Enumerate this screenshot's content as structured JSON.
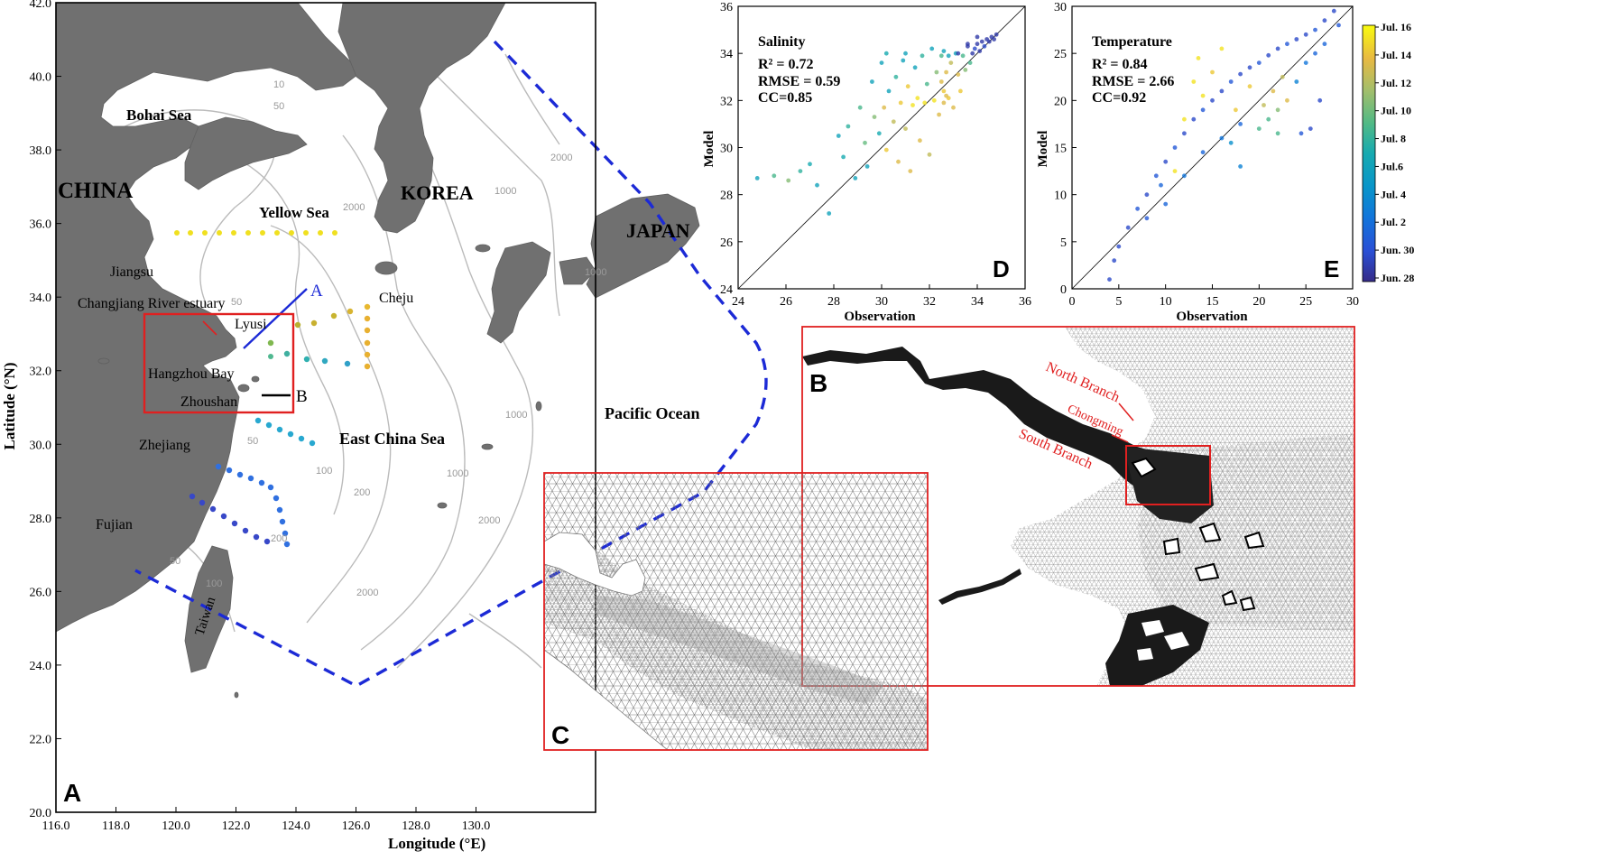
{
  "panel_a": {
    "letter": "A",
    "xlabel": "Longitude (°E)",
    "ylabel": "Latitude (°N)",
    "x_ticks": [
      "116.0",
      "118.0",
      "120.0",
      "122.0",
      "124.0",
      "126.0",
      "128.0",
      "130.0"
    ],
    "y_ticks": [
      "20.0",
      "22.0",
      "24.0",
      "26.0",
      "28.0",
      "30.0",
      "32.0",
      "34.0",
      "36.0",
      "38.0",
      "40.0",
      "42.0"
    ],
    "labels": {
      "china": "CHINA",
      "korea": "KOREA",
      "japan": "JAPAN",
      "bohai": "Bohai Sea",
      "yellow": "Yellow Sea",
      "east_china": "East China Sea",
      "pacific": "Pacific Ocean",
      "jiangsu": "Jiangsu",
      "estuary": "Changjiang River estuary",
      "lyusi": "Lyusi",
      "hangzhou": "Hangzhou Bay",
      "zhoushan": "Zhoushan",
      "zhejiang": "Zhejiang",
      "fujian": "Fujian",
      "taiwan": "Taiwan",
      "cheju": "Cheju",
      "section_a": "A",
      "section_b": "B"
    },
    "contour_labels": [
      "10",
      "50",
      "100",
      "200",
      "1000",
      "2000"
    ],
    "colors": {
      "land": "#707070",
      "boundary": "#1c2ad6",
      "box": "#e02020",
      "contour": "#bbbbbb"
    }
  },
  "panel_b": {
    "letter": "B",
    "labels": {
      "north": "North Branch",
      "chongming": "Chongming",
      "south": "South Branch"
    }
  },
  "panel_c": {
    "letter": "C"
  },
  "panel_d": {
    "letter": "D",
    "title": "Salinity",
    "r2": "R² = 0.72",
    "rmse": "RMSE = 0.59",
    "cc": "CC=0.85",
    "xlabel": "Observation",
    "ylabel": "Model"
  },
  "panel_e": {
    "letter": "E",
    "title": "Temperature",
    "r2": "R² = 0.84",
    "rmse": "RMSE = 2.66",
    "cc": "CC=0.92",
    "xlabel": "Observation",
    "ylabel": "Model"
  },
  "colorbar": {
    "labels": [
      "Jul. 16",
      "Jul. 14",
      "Jul. 12",
      "Jul. 10",
      "Jul. 8",
      "Jul.6",
      "Jul. 4",
      "Jul. 2",
      "Jun. 30",
      "Jun. 28"
    ]
  },
  "chart_data": [
    {
      "type": "scatter",
      "title": "Salinity",
      "xlabel": "Observation",
      "ylabel": "Model",
      "xlim": [
        24,
        36
      ],
      "ylim": [
        24,
        36
      ],
      "x_ticks": [
        24,
        26,
        28,
        30,
        32,
        34,
        36
      ],
      "y_ticks": [
        24,
        26,
        28,
        30,
        32,
        34,
        36
      ],
      "reference_line": "y = x",
      "stats": {
        "R2": 0.72,
        "RMSE": 0.59,
        "CC": 0.85
      },
      "points": [
        [
          24.8,
          28.7,
          0.45
        ],
        [
          25.5,
          28.8,
          0.6
        ],
        [
          26.1,
          28.6,
          0.7
        ],
        [
          26.6,
          29.0,
          0.55
        ],
        [
          27.0,
          29.3,
          0.5
        ],
        [
          27.3,
          28.4,
          0.45
        ],
        [
          27.8,
          27.2,
          0.45
        ],
        [
          28.2,
          30.5,
          0.45
        ],
        [
          28.4,
          29.6,
          0.5
        ],
        [
          28.6,
          30.9,
          0.55
        ],
        [
          28.9,
          28.7,
          0.45
        ],
        [
          29.1,
          31.7,
          0.6
        ],
        [
          29.3,
          30.2,
          0.65
        ],
        [
          29.4,
          29.2,
          0.45
        ],
        [
          29.6,
          32.8,
          0.45
        ],
        [
          29.7,
          31.3,
          0.7
        ],
        [
          29.9,
          30.6,
          0.5
        ],
        [
          30.0,
          33.6,
          0.45
        ],
        [
          30.1,
          31.7,
          0.85
        ],
        [
          30.2,
          29.9,
          0.9
        ],
        [
          30.3,
          32.4,
          0.45
        ],
        [
          30.5,
          31.1,
          0.8
        ],
        [
          30.6,
          33.0,
          0.55
        ],
        [
          30.7,
          29.4,
          0.85
        ],
        [
          30.8,
          31.9,
          0.9
        ],
        [
          30.9,
          33.7,
          0.45
        ],
        [
          31.0,
          30.8,
          0.8
        ],
        [
          31.1,
          32.6,
          0.9
        ],
        [
          31.2,
          29.0,
          0.85
        ],
        [
          31.3,
          31.8,
          0.95
        ],
        [
          31.4,
          33.4,
          0.45
        ],
        [
          31.5,
          32.1,
          0.95
        ],
        [
          31.6,
          30.3,
          0.85
        ],
        [
          31.7,
          33.9,
          0.55
        ],
        [
          31.8,
          31.9,
          0.95
        ],
        [
          31.9,
          32.7,
          0.6
        ],
        [
          32.0,
          29.7,
          0.8
        ],
        [
          32.1,
          34.2,
          0.45
        ],
        [
          32.2,
          32.0,
          0.95
        ],
        [
          32.3,
          33.2,
          0.7
        ],
        [
          32.4,
          31.4,
          0.85
        ],
        [
          32.5,
          33.9,
          0.6
        ],
        [
          32.6,
          32.4,
          0.9
        ],
        [
          32.6,
          34.1,
          0.45
        ],
        [
          32.7,
          33.2,
          0.85
        ],
        [
          32.8,
          32.1,
          0.9
        ],
        [
          32.9,
          33.6,
          0.8
        ],
        [
          33.0,
          31.7,
          0.85
        ],
        [
          33.1,
          34.0,
          0.45
        ],
        [
          33.2,
          33.1,
          0.85
        ],
        [
          33.3,
          32.4,
          0.9
        ],
        [
          33.4,
          33.9,
          0.6
        ],
        [
          33.5,
          33.3,
          0.7
        ],
        [
          33.6,
          34.3,
          0.05
        ],
        [
          33.7,
          33.6,
          0.6
        ],
        [
          33.8,
          34.0,
          0.05
        ],
        [
          33.9,
          34.2,
          0.1
        ],
        [
          34.0,
          34.4,
          0.05
        ],
        [
          34.1,
          34.1,
          0.05
        ],
        [
          34.2,
          34.5,
          0.05
        ],
        [
          34.3,
          34.3,
          0.1
        ],
        [
          34.4,
          34.6,
          0.05
        ],
        [
          34.5,
          34.5,
          0.05
        ],
        [
          34.6,
          34.7,
          0.05
        ],
        [
          34.7,
          34.6,
          0.05
        ],
        [
          34.8,
          34.8,
          0.05
        ],
        [
          33.2,
          34.0,
          0.05
        ],
        [
          33.6,
          34.4,
          0.05
        ],
        [
          34.0,
          34.7,
          0.05
        ],
        [
          32.8,
          33.9,
          0.45
        ],
        [
          31.0,
          34.0,
          0.45
        ],
        [
          30.2,
          34.0,
          0.5
        ],
        [
          32.5,
          32.8,
          0.85
        ],
        [
          32.7,
          32.2,
          0.85
        ],
        [
          32.6,
          31.9,
          0.85
        ]
      ]
    },
    {
      "type": "scatter",
      "title": "Temperature",
      "xlabel": "Observation",
      "ylabel": "Model",
      "xlim": [
        0,
        30
      ],
      "ylim": [
        0,
        30
      ],
      "x_ticks": [
        0,
        5,
        10,
        15,
        20,
        25,
        30
      ],
      "y_ticks": [
        0,
        5,
        10,
        15,
        20,
        25,
        30
      ],
      "reference_line": "y = x",
      "stats": {
        "R2": 0.84,
        "RMSE": 2.66,
        "CC": 0.92
      },
      "points": [
        [
          4.0,
          1.0,
          0.1
        ],
        [
          4.5,
          3.0,
          0.1
        ],
        [
          5.0,
          4.5,
          0.1
        ],
        [
          6.0,
          6.5,
          0.1
        ],
        [
          7.0,
          8.5,
          0.15
        ],
        [
          8.0,
          10.0,
          0.1
        ],
        [
          9.0,
          12.0,
          0.15
        ],
        [
          10.0,
          13.5,
          0.1
        ],
        [
          11.0,
          15.0,
          0.15
        ],
        [
          12.0,
          16.5,
          0.1
        ],
        [
          13.0,
          18.0,
          0.1
        ],
        [
          14.0,
          19.0,
          0.15
        ],
        [
          15.0,
          20.0,
          0.1
        ],
        [
          16.0,
          21.0,
          0.1
        ],
        [
          17.0,
          22.0,
          0.15
        ],
        [
          18.0,
          22.8,
          0.1
        ],
        [
          19.0,
          23.5,
          0.1
        ],
        [
          20.0,
          24.0,
          0.15
        ],
        [
          21.0,
          24.8,
          0.1
        ],
        [
          22.0,
          25.5,
          0.1
        ],
        [
          23.0,
          26.0,
          0.15
        ],
        [
          24.0,
          26.5,
          0.1
        ],
        [
          25.0,
          27.0,
          0.1
        ],
        [
          26.0,
          27.5,
          0.15
        ],
        [
          27.0,
          28.5,
          0.1
        ],
        [
          28.0,
          29.5,
          0.1
        ],
        [
          28.5,
          28.0,
          0.15
        ],
        [
          10.0,
          9.0,
          0.2
        ],
        [
          12.0,
          12.0,
          0.25
        ],
        [
          14.0,
          14.5,
          0.2
        ],
        [
          16.0,
          16.0,
          0.25
        ],
        [
          18.0,
          17.5,
          0.2
        ],
        [
          20.0,
          17.0,
          0.6
        ],
        [
          21.0,
          18.0,
          0.6
        ],
        [
          22.0,
          16.5,
          0.6
        ],
        [
          20.5,
          19.5,
          0.8
        ],
        [
          21.5,
          21.0,
          0.85
        ],
        [
          22.5,
          22.5,
          0.8
        ],
        [
          23.0,
          20.0,
          0.85
        ],
        [
          13.0,
          22.0,
          0.95
        ],
        [
          13.5,
          24.5,
          0.95
        ],
        [
          14.0,
          20.5,
          0.95
        ],
        [
          12.0,
          18.0,
          0.95
        ],
        [
          11.0,
          12.5,
          0.95
        ],
        [
          15.0,
          23.0,
          0.9
        ],
        [
          16.0,
          25.5,
          0.95
        ],
        [
          17.5,
          19.0,
          0.9
        ],
        [
          19.0,
          21.5,
          0.9
        ],
        [
          24.0,
          22.0,
          0.3
        ],
        [
          25.0,
          24.0,
          0.25
        ],
        [
          26.0,
          25.0,
          0.2
        ],
        [
          27.0,
          26.0,
          0.2
        ],
        [
          25.5,
          17.0,
          0.1
        ],
        [
          26.5,
          20.0,
          0.1
        ],
        [
          24.5,
          16.5,
          0.15
        ],
        [
          22.0,
          19.0,
          0.7
        ],
        [
          18.0,
          13.0,
          0.3
        ],
        [
          17.0,
          15.5,
          0.35
        ],
        [
          8.0,
          7.5,
          0.15
        ],
        [
          9.5,
          11.0,
          0.2
        ]
      ]
    }
  ]
}
